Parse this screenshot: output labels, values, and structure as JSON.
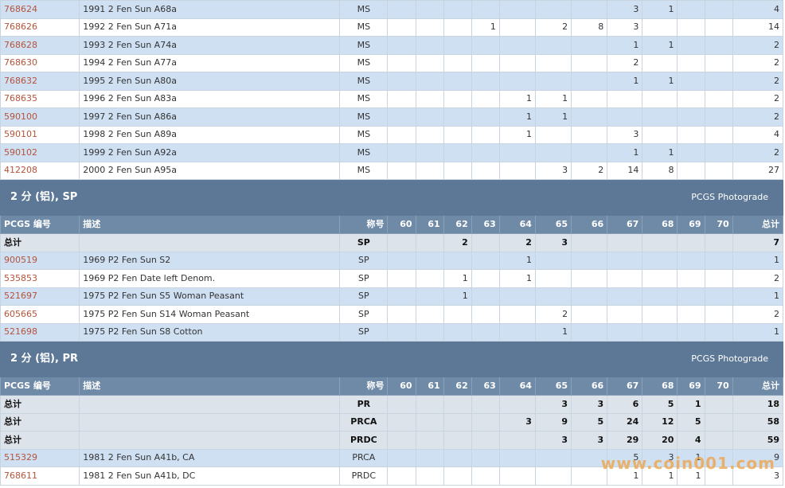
{
  "grade_headers": [
    "60",
    "61",
    "62",
    "63",
    "64",
    "65",
    "66",
    "67",
    "68",
    "69",
    "70"
  ],
  "header_labels": {
    "id": "PCGS 编号",
    "desc": "描述",
    "desig": "称号",
    "total": "总计"
  },
  "photograde_label": "PCGS Photograde",
  "watermark": "www.coin001.com",
  "colors": {
    "section_bg": "#5c7896",
    "header_bg": "#6f8aa6",
    "row_blue": "#cfe0f3",
    "id_link": "#b5533a",
    "total_bg": "#dde3ea"
  },
  "rows_top": [
    {
      "id": "768624",
      "desc": "1991 2 Fen Sun A68a",
      "desig": "MS",
      "g": [
        "",
        "",
        "",
        "",
        "",
        "",
        "",
        "3",
        "1",
        "",
        ""
      ],
      "total": "4"
    },
    {
      "id": "768626",
      "desc": "1992 2 Fen Sun A71a",
      "desig": "MS",
      "g": [
        "",
        "",
        "",
        "1",
        "",
        "2",
        "8",
        "3",
        "",
        "",
        ""
      ],
      "total": "14"
    },
    {
      "id": "768628",
      "desc": "1993 2 Fen Sun A74a",
      "desig": "MS",
      "g": [
        "",
        "",
        "",
        "",
        "",
        "",
        "",
        "1",
        "1",
        "",
        ""
      ],
      "total": "2"
    },
    {
      "id": "768630",
      "desc": "1994 2 Fen Sun A77a",
      "desig": "MS",
      "g": [
        "",
        "",
        "",
        "",
        "",
        "",
        "",
        "2",
        "",
        "",
        ""
      ],
      "total": "2"
    },
    {
      "id": "768632",
      "desc": "1995 2 Fen Sun A80a",
      "desig": "MS",
      "g": [
        "",
        "",
        "",
        "",
        "",
        "",
        "",
        "1",
        "1",
        "",
        ""
      ],
      "total": "2"
    },
    {
      "id": "768635",
      "desc": "1996 2 Fen Sun A83a",
      "desig": "MS",
      "g": [
        "",
        "",
        "",
        "",
        "1",
        "1",
        "",
        "",
        "",
        "",
        ""
      ],
      "total": "2"
    },
    {
      "id": "590100",
      "desc": "1997 2 Fen Sun A86a",
      "desig": "MS",
      "g": [
        "",
        "",
        "",
        "",
        "1",
        "1",
        "",
        "",
        "",
        "",
        ""
      ],
      "total": "2"
    },
    {
      "id": "590101",
      "desc": "1998 2 Fen Sun A89a",
      "desig": "MS",
      "g": [
        "",
        "",
        "",
        "",
        "1",
        "",
        "",
        "3",
        "",
        "",
        ""
      ],
      "total": "4"
    },
    {
      "id": "590102",
      "desc": "1999 2 Fen Sun A92a",
      "desig": "MS",
      "g": [
        "",
        "",
        "",
        "",
        "",
        "",
        "",
        "1",
        "1",
        "",
        ""
      ],
      "total": "2"
    },
    {
      "id": "412208",
      "desc": "2000 2 Fen Sun A95a",
      "desig": "MS",
      "g": [
        "",
        "",
        "",
        "",
        "",
        "3",
        "2",
        "14",
        "8",
        "",
        ""
      ],
      "total": "27"
    }
  ],
  "sp": {
    "title": "2 分 (铝), SP",
    "totals": [
      {
        "label": "总计",
        "desig": "SP",
        "g": [
          "",
          "",
          "2",
          "",
          "2",
          "3",
          "",
          "",
          "",
          "",
          ""
        ],
        "total": "7"
      }
    ],
    "rows": [
      {
        "id": "900519",
        "desc": "1969 P2 Fen Sun S2",
        "desig": "SP",
        "g": [
          "",
          "",
          "",
          "",
          "1",
          "",
          "",
          "",
          "",
          "",
          ""
        ],
        "total": "1"
      },
      {
        "id": "535853",
        "desc": "1969 P2 Fen Date left Denom.",
        "desig": "SP",
        "g": [
          "",
          "",
          "1",
          "",
          "1",
          "",
          "",
          "",
          "",
          "",
          ""
        ],
        "total": "2"
      },
      {
        "id": "521697",
        "desc": "1975 P2 Fen Sun S5   Woman Peasant",
        "desig": "SP",
        "g": [
          "",
          "",
          "1",
          "",
          "",
          "",
          "",
          "",
          "",
          "",
          ""
        ],
        "total": "1"
      },
      {
        "id": "605665",
        "desc": "1975 P2 Fen Sun S14   Woman Peasant",
        "desig": "SP",
        "g": [
          "",
          "",
          "",
          "",
          "",
          "2",
          "",
          "",
          "",
          "",
          ""
        ],
        "total": "2"
      },
      {
        "id": "521698",
        "desc": "1975 P2 Fen Sun S8   Cotton",
        "desig": "SP",
        "g": [
          "",
          "",
          "",
          "",
          "",
          "1",
          "",
          "",
          "",
          "",
          ""
        ],
        "total": "1"
      }
    ]
  },
  "pr": {
    "title": "2 分 (铝), PR",
    "totals": [
      {
        "label": "总计",
        "desig": "PR",
        "g": [
          "",
          "",
          "",
          "",
          "",
          "3",
          "3",
          "6",
          "5",
          "1",
          ""
        ],
        "total": "18"
      },
      {
        "label": "总计",
        "desig": "PRCA",
        "g": [
          "",
          "",
          "",
          "",
          "3",
          "9",
          "5",
          "24",
          "12",
          "5",
          ""
        ],
        "total": "58"
      },
      {
        "label": "总计",
        "desig": "PRDC",
        "g": [
          "",
          "",
          "",
          "",
          "",
          "3",
          "3",
          "29",
          "20",
          "4",
          ""
        ],
        "total": "59"
      }
    ],
    "rows": [
      {
        "id": "515329",
        "desc": "1981 2 Fen Sun A41b, CA",
        "desig": "PRCA",
        "g": [
          "",
          "",
          "",
          "",
          "",
          "",
          "",
          "5",
          "3",
          "1",
          ""
        ],
        "total": "9"
      },
      {
        "id": "768611",
        "desc": "1981 2 Fen Sun A41b, DC",
        "desig": "PRDC",
        "g": [
          "",
          "",
          "",
          "",
          "",
          "",
          "",
          "1",
          "1",
          "1",
          ""
        ],
        "total": "3"
      }
    ]
  }
}
